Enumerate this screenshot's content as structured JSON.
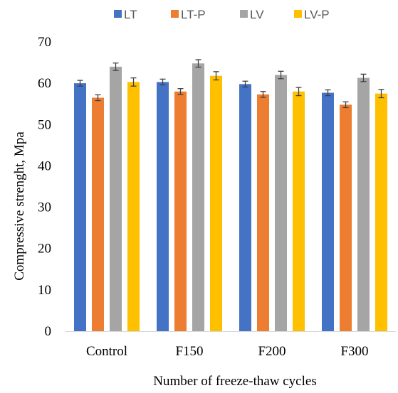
{
  "chart_data": {
    "type": "bar",
    "categories": [
      "Control",
      "F150",
      "F200",
      "F300"
    ],
    "series": [
      {
        "name": "LT",
        "color": "#4472C4",
        "values": [
          60.0,
          60.3,
          59.8,
          57.7
        ],
        "errors": [
          0.7,
          0.7,
          0.7,
          0.7
        ]
      },
      {
        "name": "LT-P",
        "color": "#ED7D31",
        "values": [
          56.5,
          58.0,
          57.3,
          54.8
        ],
        "errors": [
          0.7,
          0.7,
          0.7,
          0.7
        ]
      },
      {
        "name": "LV",
        "color": "#A5A5A5",
        "values": [
          64.0,
          64.8,
          62.0,
          61.3
        ],
        "errors": [
          0.9,
          0.9,
          0.9,
          0.9
        ]
      },
      {
        "name": "LV-P",
        "color": "#FFC000",
        "values": [
          60.3,
          61.8,
          58.0,
          57.5
        ],
        "errors": [
          1.0,
          1.0,
          1.0,
          1.0
        ]
      }
    ],
    "title": "",
    "xlabel": "Number of freeze-thaw cycles",
    "ylabel": "Compressive strenght, Mpa",
    "ylim": [
      0,
      70
    ],
    "yticks": [
      "0",
      "10",
      "20",
      "30",
      "40",
      "50",
      "60",
      "70"
    ],
    "grid": false,
    "legend": "top",
    "error_bars": true
  }
}
